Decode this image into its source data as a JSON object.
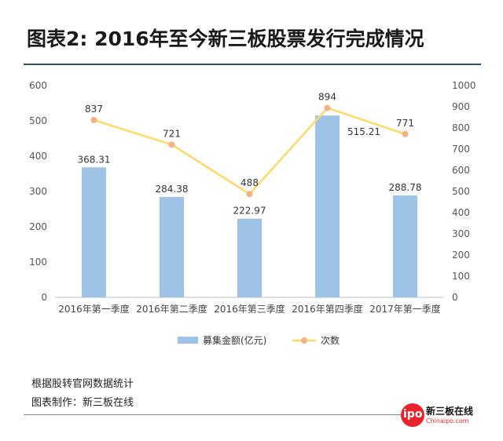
{
  "title": "图表2: 2016年至今新三板股票发行完成情况",
  "source_line": "根据股转官网数据统计",
  "credit_line": "图表制作：新三板在线",
  "logo": {
    "badge": "ipo",
    "name": "新三板在线",
    "site": "Chinaipo.com",
    "color": "#e8242b"
  },
  "chart_data": {
    "type": "bar+line",
    "categories": [
      "2016年第一季度",
      "2016年第二季度",
      "2016年第三季度",
      "2016年第四季度",
      "2017年第一季度"
    ],
    "bar_series": {
      "name": "募集金额(亿元)",
      "values": [
        368.31,
        284.38,
        222.97,
        515.21,
        288.78
      ],
      "labels": [
        "368.31",
        "284.38",
        "222.97",
        "515.21",
        "288.78"
      ],
      "color": "#9dc3e6",
      "axis": "left"
    },
    "line_series": {
      "name": "次数",
      "values": [
        837,
        721,
        488,
        894,
        771
      ],
      "labels": [
        "837",
        "721",
        "488",
        "894",
        "771"
      ],
      "color": "#ffd966",
      "marker_color": "#f4b183",
      "axis": "right"
    },
    "y_left": {
      "min": 0,
      "max": 600,
      "ticks": [
        0,
        100,
        200,
        300,
        400,
        500,
        600
      ]
    },
    "y_right": {
      "min": 0,
      "max": 1000,
      "ticks": [
        0,
        100,
        200,
        300,
        400,
        500,
        600,
        700,
        800,
        900,
        1000
      ]
    },
    "legend_position": "bottom",
    "grid": false
  }
}
